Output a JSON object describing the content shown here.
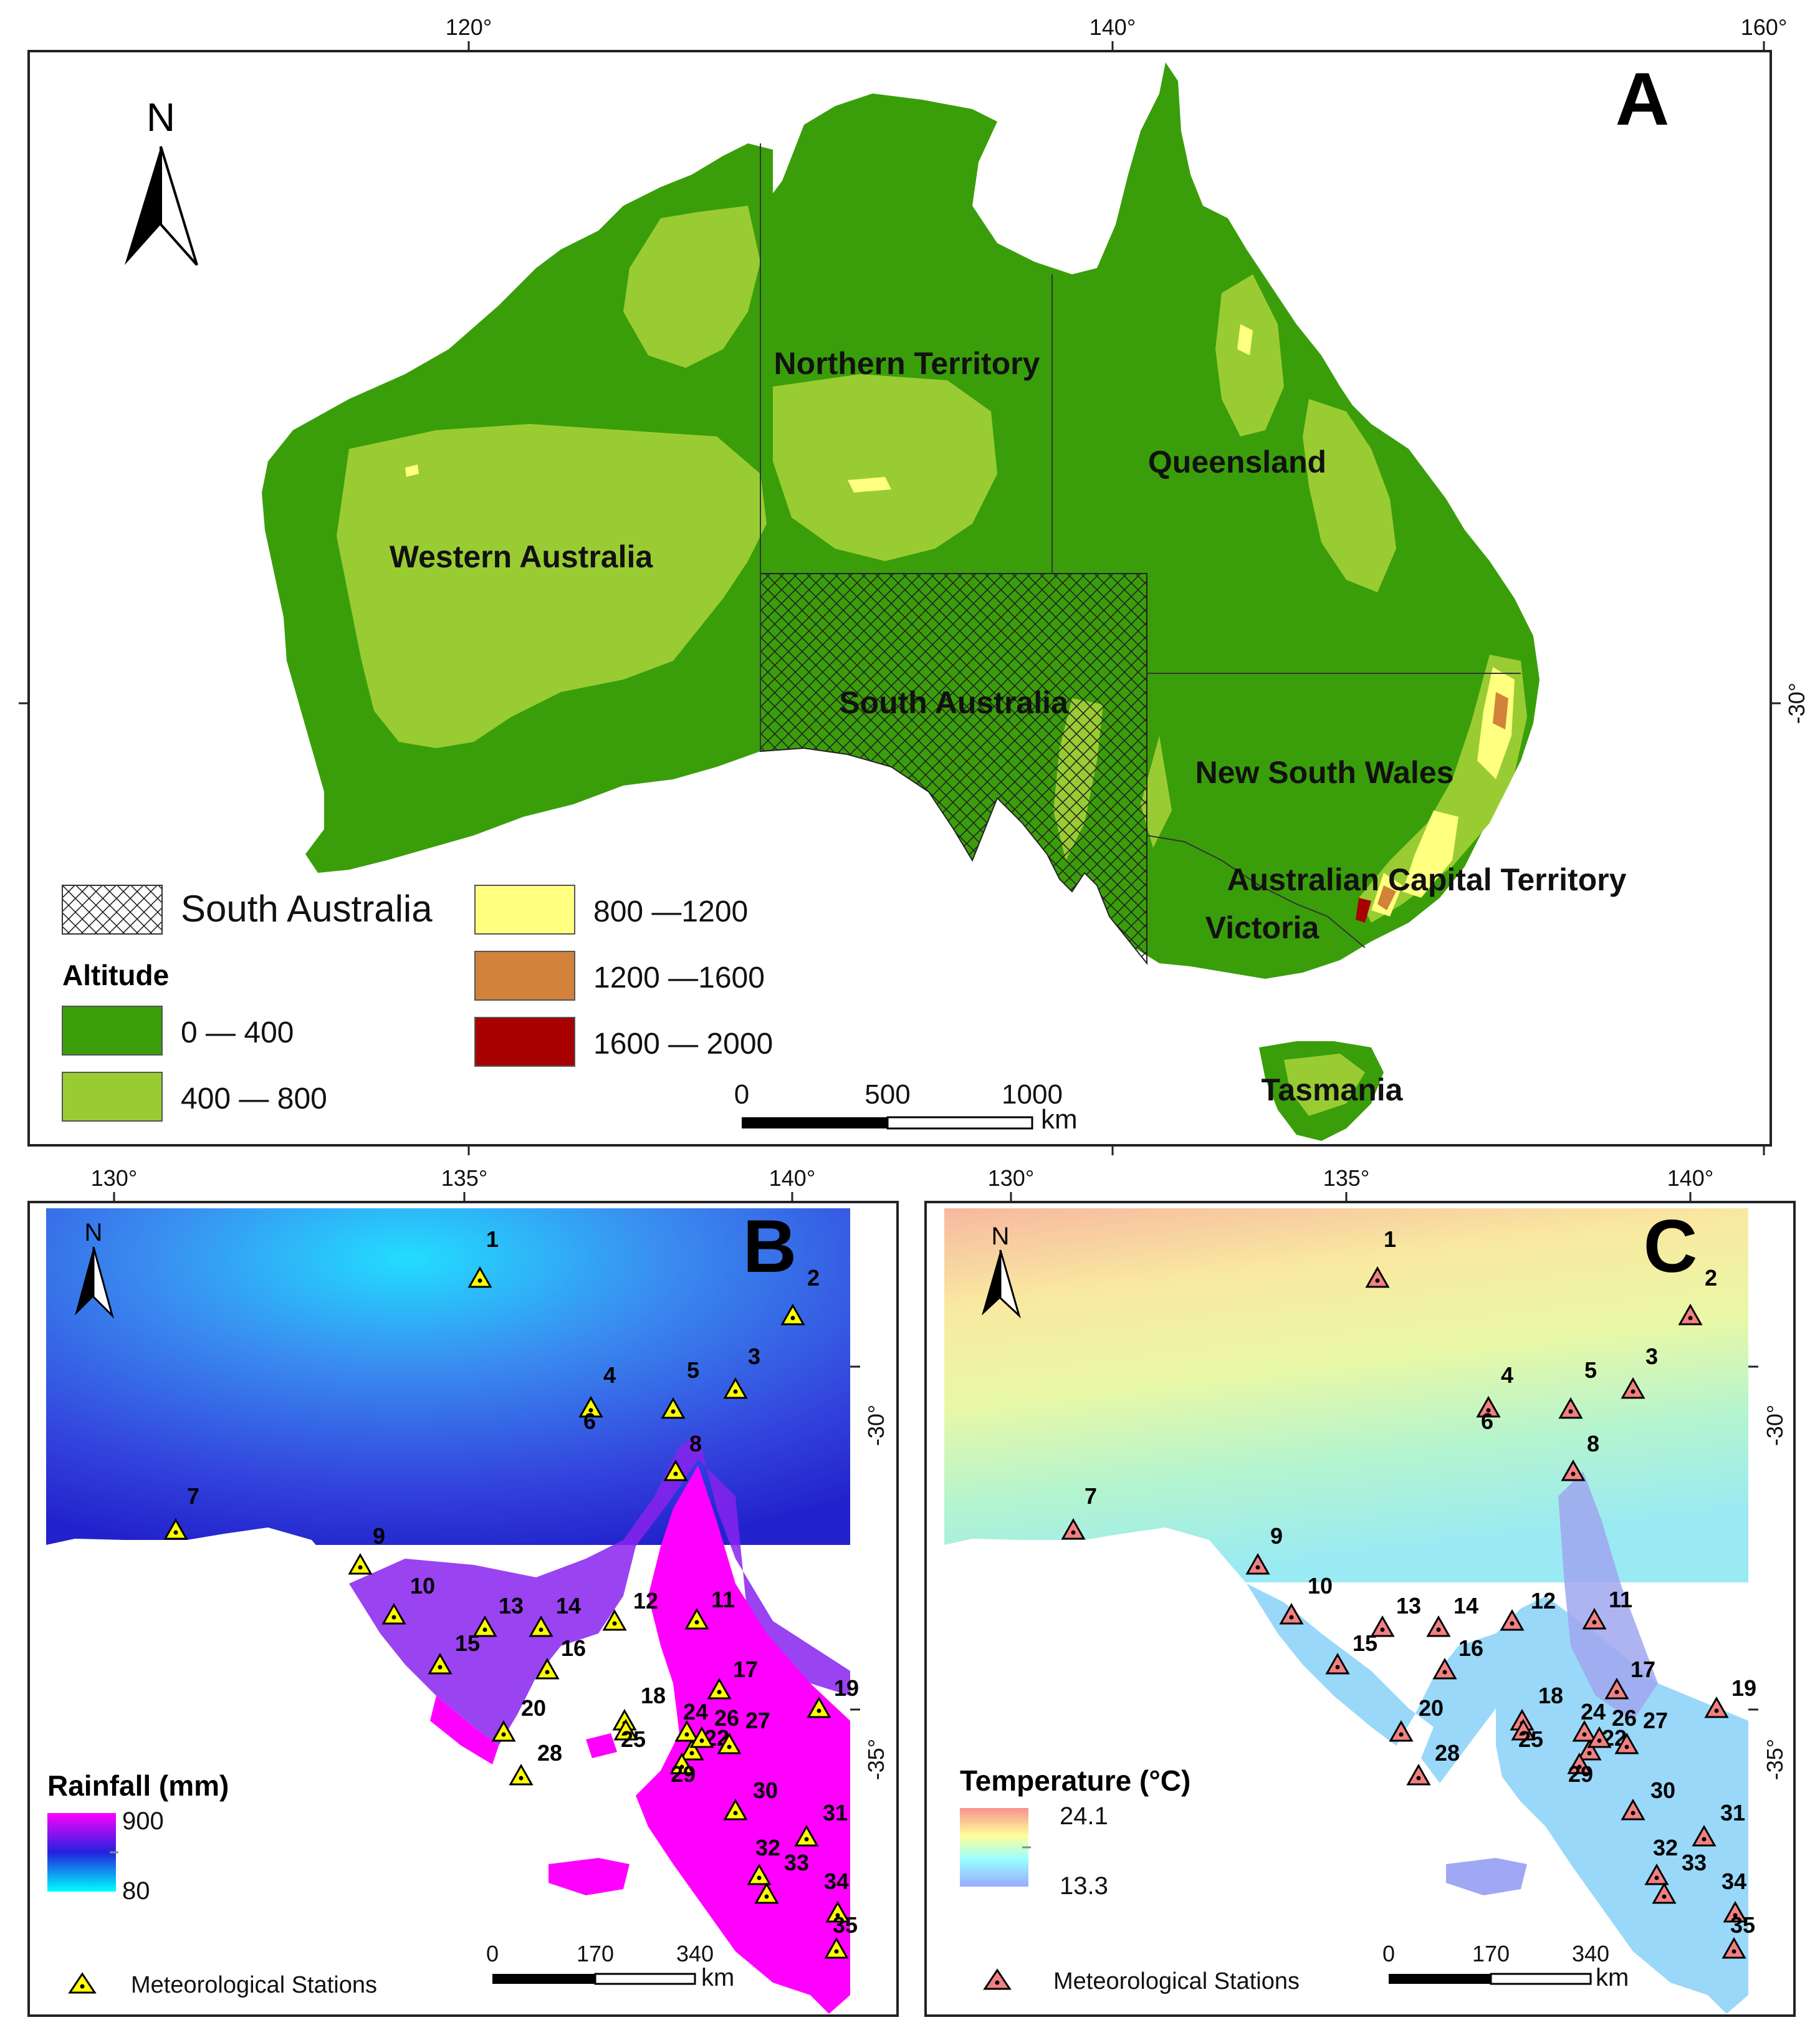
{
  "panel_a": {
    "letter": "A",
    "lon_ticks": [
      "120°",
      "140°",
      "160°"
    ],
    "lat_tick": "-30°",
    "north": "N",
    "states": [
      "Northern Territory",
      "Queensland",
      "Western Australia",
      "South Australia",
      "New South Wales",
      "Australian Capital Territory",
      "Victoria",
      "Tasmania"
    ],
    "legend": {
      "hatch_label": "South Australia",
      "altitude_title": "Altitude",
      "classes": [
        {
          "label": "0 — 400",
          "color": "#3a9e0a"
        },
        {
          "label": "400 — 800",
          "color": "#99cc33"
        },
        {
          "label": "800 —1200",
          "color": "#ffff80"
        },
        {
          "label": "1200 —1600",
          "color": "#d2823a"
        },
        {
          "label": "1600 — 2000",
          "color": "#a80000"
        }
      ]
    },
    "scale": {
      "ticks": [
        "0",
        "500",
        "1000"
      ],
      "unit": "km"
    }
  },
  "panel_b": {
    "letter": "B",
    "lon_ticks": [
      "130°",
      "135°",
      "140°"
    ],
    "lat_ticks": [
      "-30°",
      "-35°"
    ],
    "north": "N",
    "legend_title": "Rainfall (mm)",
    "legend_max": "900",
    "legend_min": "80",
    "ramp_colors": [
      "#ff00ff",
      "#2222dd",
      "#00ffff"
    ],
    "scale": {
      "ticks": [
        "0",
        "170",
        "340"
      ],
      "unit": "km"
    },
    "station_legend": "Meteorological Stations",
    "station_marker_color": "#ffff00"
  },
  "panel_c": {
    "letter": "C",
    "lon_ticks": [
      "130°",
      "135°",
      "140°"
    ],
    "lat_ticks": [
      "-30°",
      "-35°"
    ],
    "north": "N",
    "legend_title": "Temperature (°C)",
    "legend_max": "24.1",
    "legend_min": "13.3",
    "ramp_colors": [
      "#f6928f",
      "#ffff99",
      "#99ffff",
      "#99aaff"
    ],
    "scale": {
      "ticks": [
        "0",
        "170",
        "340"
      ],
      "unit": "km"
    },
    "station_legend": "Meteorological Stations",
    "station_marker_color": "#f28080"
  },
  "stations": [
    "1",
    "2",
    "3",
    "4",
    "5",
    "6",
    "7",
    "8",
    "9",
    "10",
    "11",
    "12",
    "13",
    "14",
    "15",
    "16",
    "17",
    "18",
    "19",
    "20",
    "22",
    "24",
    "25",
    "26",
    "27",
    "28",
    "29",
    "30",
    "31",
    "32",
    "33",
    "34",
    "35"
  ]
}
